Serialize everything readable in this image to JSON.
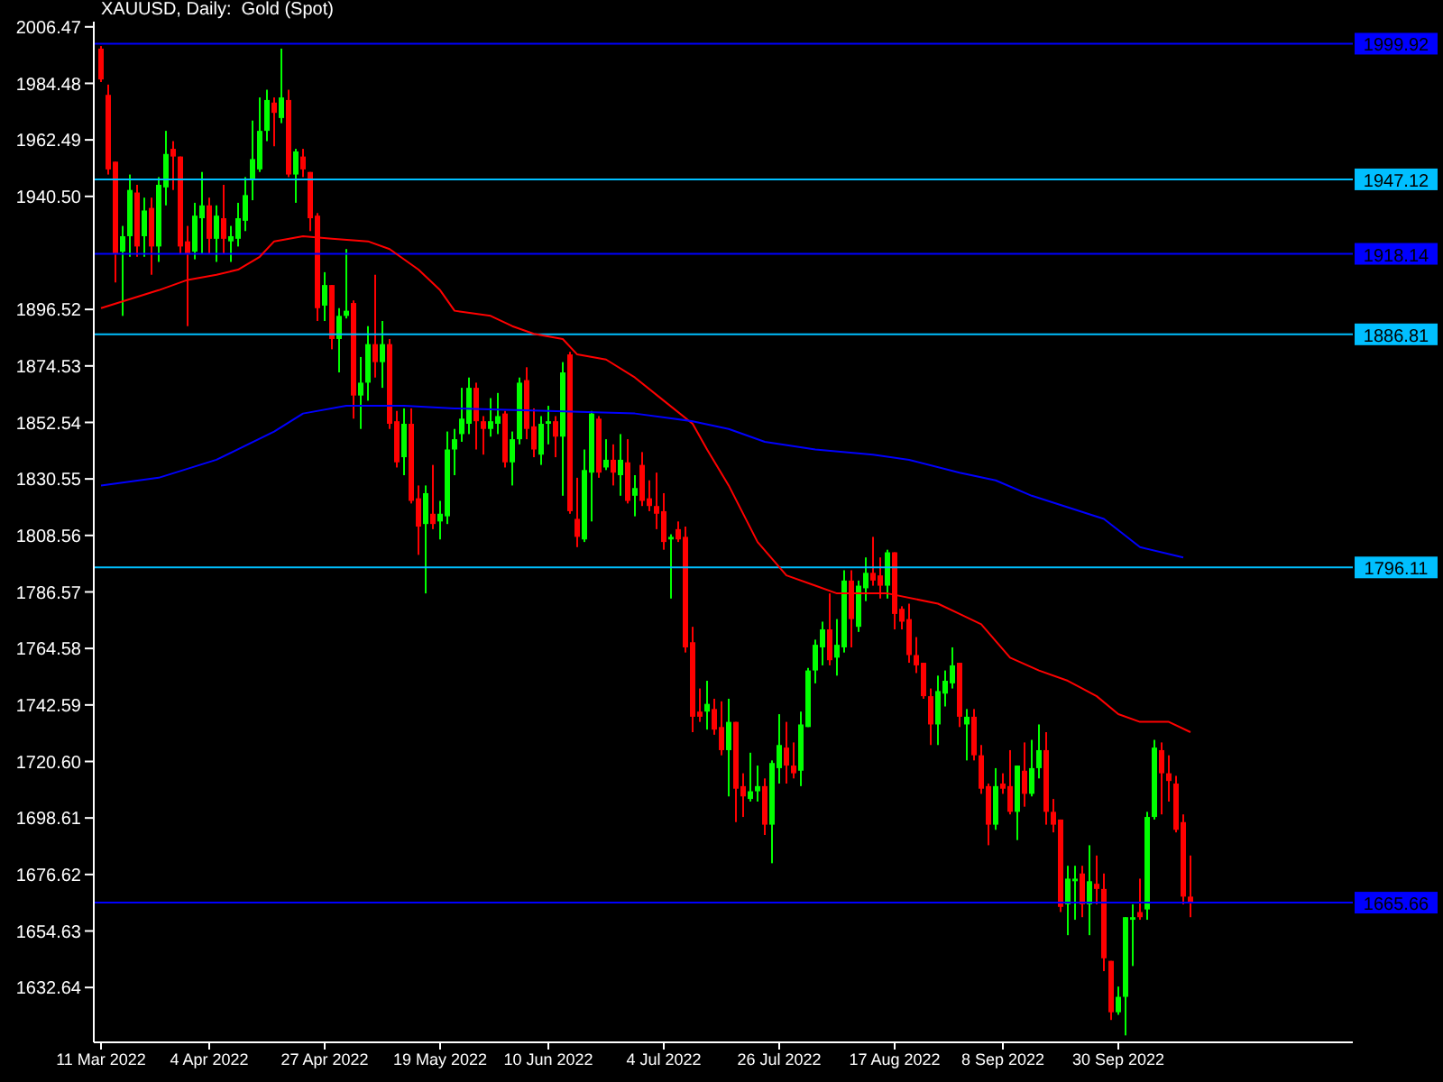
{
  "chart_data": {
    "type": "candlestick",
    "title": "XAUUSD, Daily:  Gold (Spot)",
    "categories": [
      "11 Mar 2022",
      null,
      null,
      null,
      null,
      null,
      null,
      null,
      null,
      null,
      null,
      null,
      null,
      null,
      null,
      "4 Apr 2022",
      null,
      null,
      null,
      null,
      null,
      null,
      null,
      null,
      null,
      null,
      null,
      null,
      null,
      null,
      null,
      "27 Apr 2022",
      null,
      null,
      null,
      null,
      null,
      null,
      null,
      null,
      null,
      null,
      null,
      null,
      null,
      null,
      null,
      "19 May 2022",
      null,
      null,
      null,
      null,
      null,
      null,
      null,
      null,
      null,
      null,
      null,
      null,
      null,
      null,
      "10 Jun 2022",
      null,
      null,
      null,
      null,
      null,
      null,
      null,
      null,
      null,
      null,
      null,
      null,
      null,
      null,
      null,
      "4 Jul 2022",
      null,
      null,
      null,
      null,
      null,
      null,
      null,
      null,
      null,
      null,
      null,
      null,
      null,
      null,
      null,
      "26 Jul 2022",
      null,
      null,
      null,
      null,
      null,
      null,
      null,
      null,
      null,
      null,
      null,
      null,
      null,
      null,
      null,
      "17 Aug 2022",
      null,
      null,
      null,
      null,
      null,
      null,
      null,
      null,
      null,
      null,
      null,
      null,
      null,
      null,
      "8 Sep 2022",
      null,
      null,
      null,
      null,
      null,
      null,
      null,
      null,
      null,
      null,
      null,
      null,
      null,
      null,
      null,
      "30 Sep 2022",
      null,
      null,
      null,
      null,
      null,
      null,
      null,
      null,
      null,
      null
    ],
    "ohlc": [
      [
        1998,
        1999,
        1985,
        1986
      ],
      [
        1980,
        1984,
        1949,
        1951
      ],
      [
        1954,
        1954,
        1907,
        1918
      ],
      [
        1919,
        1929,
        1894,
        1925
      ],
      [
        1925,
        1949,
        1917,
        1943
      ],
      [
        1942,
        1945,
        1917,
        1921
      ],
      [
        1925,
        1940,
        1917,
        1935
      ],
      [
        1936,
        1940,
        1910,
        1921
      ],
      [
        1921,
        1948,
        1915,
        1945
      ],
      [
        1944,
        1966,
        1937,
        1957
      ],
      [
        1959,
        1962,
        1943,
        1956
      ],
      [
        1956,
        1956,
        1918,
        1921
      ],
      [
        1923,
        1929,
        1890,
        1918
      ],
      [
        1919,
        1938,
        1916,
        1933
      ],
      [
        1932,
        1950,
        1918,
        1937
      ],
      [
        1937,
        1940,
        1918,
        1924
      ],
      [
        1924,
        1937,
        1915,
        1933
      ],
      [
        1932,
        1945,
        1918,
        1924
      ],
      [
        1923,
        1929,
        1915,
        1925
      ],
      [
        1924,
        1938,
        1921,
        1932
      ],
      [
        1931,
        1948,
        1927,
        1941
      ],
      [
        1947,
        1970,
        1939,
        1955
      ],
      [
        1951,
        1979,
        1950,
        1966
      ],
      [
        1966,
        1982,
        1962,
        1978
      ],
      [
        1977,
        1979,
        1960,
        1973
      ],
      [
        1971,
        1998,
        1969,
        1979
      ],
      [
        1978,
        1982,
        1948,
        1949
      ],
      [
        1949,
        1959,
        1938,
        1958
      ],
      [
        1956,
        1959,
        1948,
        1951
      ],
      [
        1950,
        1950,
        1927,
        1932
      ],
      [
        1933,
        1934,
        1892,
        1897
      ],
      [
        1898,
        1911,
        1892,
        1906
      ],
      [
        1906,
        1906,
        1881,
        1885
      ],
      [
        1885,
        1897,
        1872,
        1894
      ],
      [
        1894,
        1920,
        1893,
        1896
      ],
      [
        1899,
        1900,
        1854,
        1863
      ],
      [
        1863,
        1878,
        1850,
        1868
      ],
      [
        1868,
        1890,
        1861,
        1883
      ],
      [
        1883,
        1910,
        1870,
        1876
      ],
      [
        1876,
        1892,
        1866,
        1883
      ],
      [
        1883,
        1885,
        1850,
        1852
      ],
      [
        1853,
        1857,
        1835,
        1837
      ],
      [
        1839,
        1858,
        1832,
        1852
      ],
      [
        1852,
        1858,
        1821,
        1822
      ],
      [
        1823,
        1828,
        1801,
        1812
      ],
      [
        1813,
        1828,
        1786,
        1825
      ],
      [
        1817,
        1836,
        1811,
        1813
      ],
      [
        1814,
        1822,
        1807,
        1817
      ],
      [
        1816,
        1849,
        1813,
        1842
      ],
      [
        1842,
        1850,
        1832,
        1846
      ],
      [
        1848,
        1866,
        1845,
        1854
      ],
      [
        1852,
        1870,
        1848,
        1866
      ],
      [
        1866,
        1868,
        1842,
        1853
      ],
      [
        1853,
        1855,
        1840,
        1850
      ],
      [
        1850,
        1862,
        1847,
        1853
      ],
      [
        1852,
        1864,
        1848,
        1855
      ],
      [
        1856,
        1857,
        1835,
        1837
      ],
      [
        1837,
        1849,
        1828,
        1846
      ],
      [
        1846,
        1870,
        1844,
        1868
      ],
      [
        1869,
        1874,
        1846,
        1850
      ],
      [
        1851,
        1858,
        1839,
        1842
      ],
      [
        1840,
        1855,
        1836,
        1852
      ],
      [
        1852,
        1859,
        1844,
        1853
      ],
      [
        1853,
        1855,
        1839,
        1847
      ],
      [
        1847,
        1876,
        1824,
        1872
      ],
      [
        1879,
        1880,
        1817,
        1818
      ],
      [
        1815,
        1831,
        1804,
        1808
      ],
      [
        1807,
        1842,
        1806,
        1834
      ],
      [
        1833,
        1857,
        1814,
        1856
      ],
      [
        1854,
        1855,
        1831,
        1833
      ],
      [
        1835,
        1846,
        1834,
        1838
      ],
      [
        1838,
        1844,
        1828,
        1833
      ],
      [
        1832,
        1848,
        1824,
        1838
      ],
      [
        1837,
        1846,
        1821,
        1822
      ],
      [
        1824,
        1832,
        1816,
        1827
      ],
      [
        1836,
        1841,
        1820,
        1822
      ],
      [
        1823,
        1830,
        1818,
        1820
      ],
      [
        1820,
        1833,
        1811,
        1817
      ],
      [
        1818,
        1825,
        1803,
        1806
      ],
      [
        1807,
        1809,
        1784,
        1808
      ],
      [
        1811,
        1814,
        1806,
        1807
      ],
      [
        1808,
        1812,
        1763,
        1765
      ],
      [
        1767,
        1773,
        1732,
        1738
      ],
      [
        1740,
        1749,
        1736,
        1738
      ],
      [
        1740,
        1752,
        1733,
        1743
      ],
      [
        1741,
        1745,
        1731,
        1733
      ],
      [
        1734,
        1744,
        1723,
        1725
      ],
      [
        1725,
        1745,
        1707,
        1736
      ],
      [
        1736,
        1736,
        1697,
        1710
      ],
      [
        1711,
        1716,
        1699,
        1707
      ],
      [
        1706,
        1724,
        1705,
        1709
      ],
      [
        1709,
        1719,
        1705,
        1711
      ],
      [
        1711,
        1714,
        1692,
        1696
      ],
      [
        1696,
        1721,
        1681,
        1720
      ],
      [
        1718,
        1739,
        1712,
        1727
      ],
      [
        1726,
        1736,
        1712,
        1719
      ],
      [
        1719,
        1728,
        1714,
        1716
      ],
      [
        1717,
        1740,
        1711,
        1735
      ],
      [
        1734,
        1757,
        1734,
        1756
      ],
      [
        1756,
        1768,
        1751,
        1766
      ],
      [
        1765,
        1775,
        1758,
        1772
      ],
      [
        1772,
        1786,
        1758,
        1760
      ],
      [
        1761,
        1776,
        1754,
        1766
      ],
      [
        1765,
        1795,
        1763,
        1791
      ],
      [
        1791,
        1795,
        1765,
        1776
      ],
      [
        1773,
        1791,
        1771,
        1789
      ],
      [
        1788,
        1800,
        1783,
        1794
      ],
      [
        1794,
        1808,
        1789,
        1791
      ],
      [
        1793,
        1800,
        1784,
        1789
      ],
      [
        1789,
        1803,
        1784,
        1802
      ],
      [
        1802,
        1802,
        1772,
        1778
      ],
      [
        1780,
        1781,
        1772,
        1775
      ],
      [
        1776,
        1782,
        1759,
        1762
      ],
      [
        1762,
        1769,
        1755,
        1758
      ],
      [
        1759,
        1759,
        1745,
        1746
      ],
      [
        1746,
        1749,
        1727,
        1735
      ],
      [
        1735,
        1754,
        1727,
        1748
      ],
      [
        1747,
        1756,
        1742,
        1752
      ],
      [
        1751,
        1765,
        1749,
        1758
      ],
      [
        1759,
        1759,
        1734,
        1738
      ],
      [
        1735,
        1741,
        1721,
        1738
      ],
      [
        1738,
        1741,
        1721,
        1723
      ],
      [
        1723,
        1727,
        1708,
        1710
      ],
      [
        1711,
        1712,
        1688,
        1696
      ],
      [
        1696,
        1718,
        1694,
        1711
      ],
      [
        1712,
        1716,
        1708,
        1710
      ],
      [
        1711,
        1725,
        1700,
        1701
      ],
      [
        1701,
        1719,
        1690,
        1719
      ],
      [
        1717,
        1728,
        1703,
        1708
      ],
      [
        1708,
        1729,
        1707,
        1718
      ],
      [
        1718,
        1735,
        1714,
        1725
      ],
      [
        1725,
        1732,
        1696,
        1701
      ],
      [
        1701,
        1706,
        1693,
        1696
      ],
      [
        1698,
        1698,
        1662,
        1664
      ],
      [
        1665,
        1680,
        1653,
        1675
      ],
      [
        1674,
        1680,
        1659,
        1675
      ],
      [
        1677,
        1680,
        1660,
        1665
      ],
      [
        1665,
        1688,
        1653,
        1674
      ],
      [
        1673,
        1684,
        1665,
        1671
      ],
      [
        1671,
        1677,
        1639,
        1644
      ],
      [
        1643,
        1643,
        1620,
        1623
      ],
      [
        1623,
        1633,
        1622,
        1629
      ],
      [
        1629,
        1660,
        1614,
        1660
      ],
      [
        1659,
        1665,
        1641,
        1660
      ],
      [
        1662,
        1675,
        1659,
        1660
      ],
      [
        1663,
        1701,
        1659,
        1699
      ],
      [
        1699,
        1729,
        1698,
        1726
      ],
      [
        1725,
        1728,
        1700,
        1716
      ],
      [
        1716,
        1723,
        1705,
        1713
      ],
      [
        1712,
        1715,
        1693,
        1694
      ],
      [
        1697,
        1700,
        1665,
        1668
      ],
      [
        1668,
        1684,
        1660,
        1666
      ]
    ],
    "series": [
      {
        "type": "line",
        "color": "#ff0000",
        "values": [
          1897,
          null,
          null,
          null,
          null,
          null,
          null,
          null,
          1904,
          null,
          null,
          null,
          1908,
          null,
          null,
          null,
          1910,
          null,
          null,
          1912,
          null,
          null,
          1917,
          null,
          1923,
          null,
          null,
          null,
          1925,
          null,
          null,
          null,
          1924,
          null,
          null,
          null,
          null,
          1923,
          null,
          null,
          1920,
          null,
          null,
          null,
          1912,
          null,
          null,
          1904,
          null,
          1896,
          null,
          null,
          null,
          null,
          1894,
          null,
          null,
          1890,
          null,
          null,
          1887,
          null,
          null,
          null,
          1885,
          null,
          1879,
          null,
          null,
          null,
          1877,
          null,
          null,
          null,
          1870,
          null,
          null,
          null,
          1861,
          null,
          null,
          null,
          1852,
          null,
          1842,
          null,
          null,
          1828,
          null,
          null,
          null,
          1806,
          null,
          null,
          null,
          1793,
          null,
          null,
          null,
          1789,
          null,
          null,
          1786,
          null,
          null,
          null,
          null,
          null,
          null,
          1786,
          null,
          null,
          null,
          null,
          null,
          null,
          1782,
          null,
          null,
          1778,
          null,
          null,
          1774,
          null,
          null,
          null,
          1761,
          null,
          null,
          null,
          1756,
          null,
          null,
          null,
          1752,
          null,
          null,
          null,
          1746,
          null,
          null,
          1739,
          null,
          null,
          1736,
          null,
          null,
          null,
          1736,
          null,
          null,
          1732
        ]
      },
      {
        "type": "line",
        "color": "#0000ff",
        "values": [
          1828,
          null,
          null,
          null,
          null,
          null,
          null,
          null,
          1831,
          null,
          null,
          null,
          null,
          null,
          null,
          null,
          1838,
          null,
          null,
          null,
          null,
          null,
          null,
          null,
          1849,
          null,
          null,
          null,
          1856,
          null,
          null,
          null,
          null,
          null,
          1859,
          null,
          null,
          null,
          null,
          null,
          null,
          null,
          1859,
          null,
          null,
          null,
          null,
          null,
          null,
          1858,
          null,
          null,
          null,
          null,
          null,
          null,
          null,
          null,
          null,
          null,
          null,
          null,
          1857,
          null,
          null,
          null,
          null,
          null,
          null,
          null,
          null,
          null,
          null,
          null,
          1856,
          null,
          null,
          null,
          null,
          null,
          null,
          null,
          1853,
          null,
          null,
          null,
          null,
          1850,
          null,
          null,
          null,
          null,
          1845,
          null,
          null,
          null,
          null,
          null,
          null,
          1842,
          null,
          null,
          null,
          null,
          null,
          null,
          null,
          1840,
          null,
          null,
          null,
          null,
          1838,
          null,
          null,
          null,
          null,
          null,
          null,
          1833,
          null,
          null,
          null,
          null,
          1830,
          null,
          null,
          null,
          null,
          1824,
          null,
          null,
          null,
          null,
          null,
          null,
          null,
          null,
          null,
          1815,
          null,
          null,
          null,
          null,
          1804,
          null,
          null,
          null,
          null,
          null,
          1800,
          null
        ]
      }
    ],
    "ylim": [
      1611.3,
      2008.5
    ],
    "yticks": [
      {
        "value": 2006.47,
        "label": "2006.47"
      },
      {
        "value": 1984.48,
        "label": "1984.48"
      },
      {
        "value": 1962.49,
        "label": "1962.49"
      },
      {
        "value": 1940.5,
        "label": "1940.50"
      },
      {
        "value": 1896.52,
        "label": "1896.52"
      },
      {
        "value": 1874.53,
        "label": "1874.53"
      },
      {
        "value": 1852.54,
        "label": "1852.54"
      },
      {
        "value": 1830.55,
        "label": "1830.55"
      },
      {
        "value": 1808.56,
        "label": "1808.56"
      },
      {
        "value": 1786.57,
        "label": "1786.57"
      },
      {
        "value": 1764.58,
        "label": "1764.58"
      },
      {
        "value": 1742.59,
        "label": "1742.59"
      },
      {
        "value": 1720.6,
        "label": "1720.60"
      },
      {
        "value": 1698.61,
        "label": "1698.61"
      },
      {
        "value": 1676.62,
        "label": "1676.62"
      },
      {
        "value": 1654.63,
        "label": "1654.63"
      },
      {
        "value": 1632.64,
        "label": "1632.64"
      }
    ],
    "ref_lines": [
      {
        "axis": "y",
        "value": 1999.92,
        "label": "1999.92",
        "color": "#0000ff"
      },
      {
        "axis": "y",
        "value": 1947.12,
        "label": "1947.12",
        "color": "#00bfff"
      },
      {
        "axis": "y",
        "value": 1918.14,
        "label": "1918.14",
        "color": "#0000ff"
      },
      {
        "axis": "y",
        "value": 1886.81,
        "label": "1886.81",
        "color": "#00bfff"
      },
      {
        "axis": "y",
        "value": 1796.11,
        "label": "1796.11",
        "color": "#00bfff"
      },
      {
        "axis": "y",
        "value": 1665.66,
        "label": "1665.66",
        "color": "#0000ff"
      }
    ]
  }
}
